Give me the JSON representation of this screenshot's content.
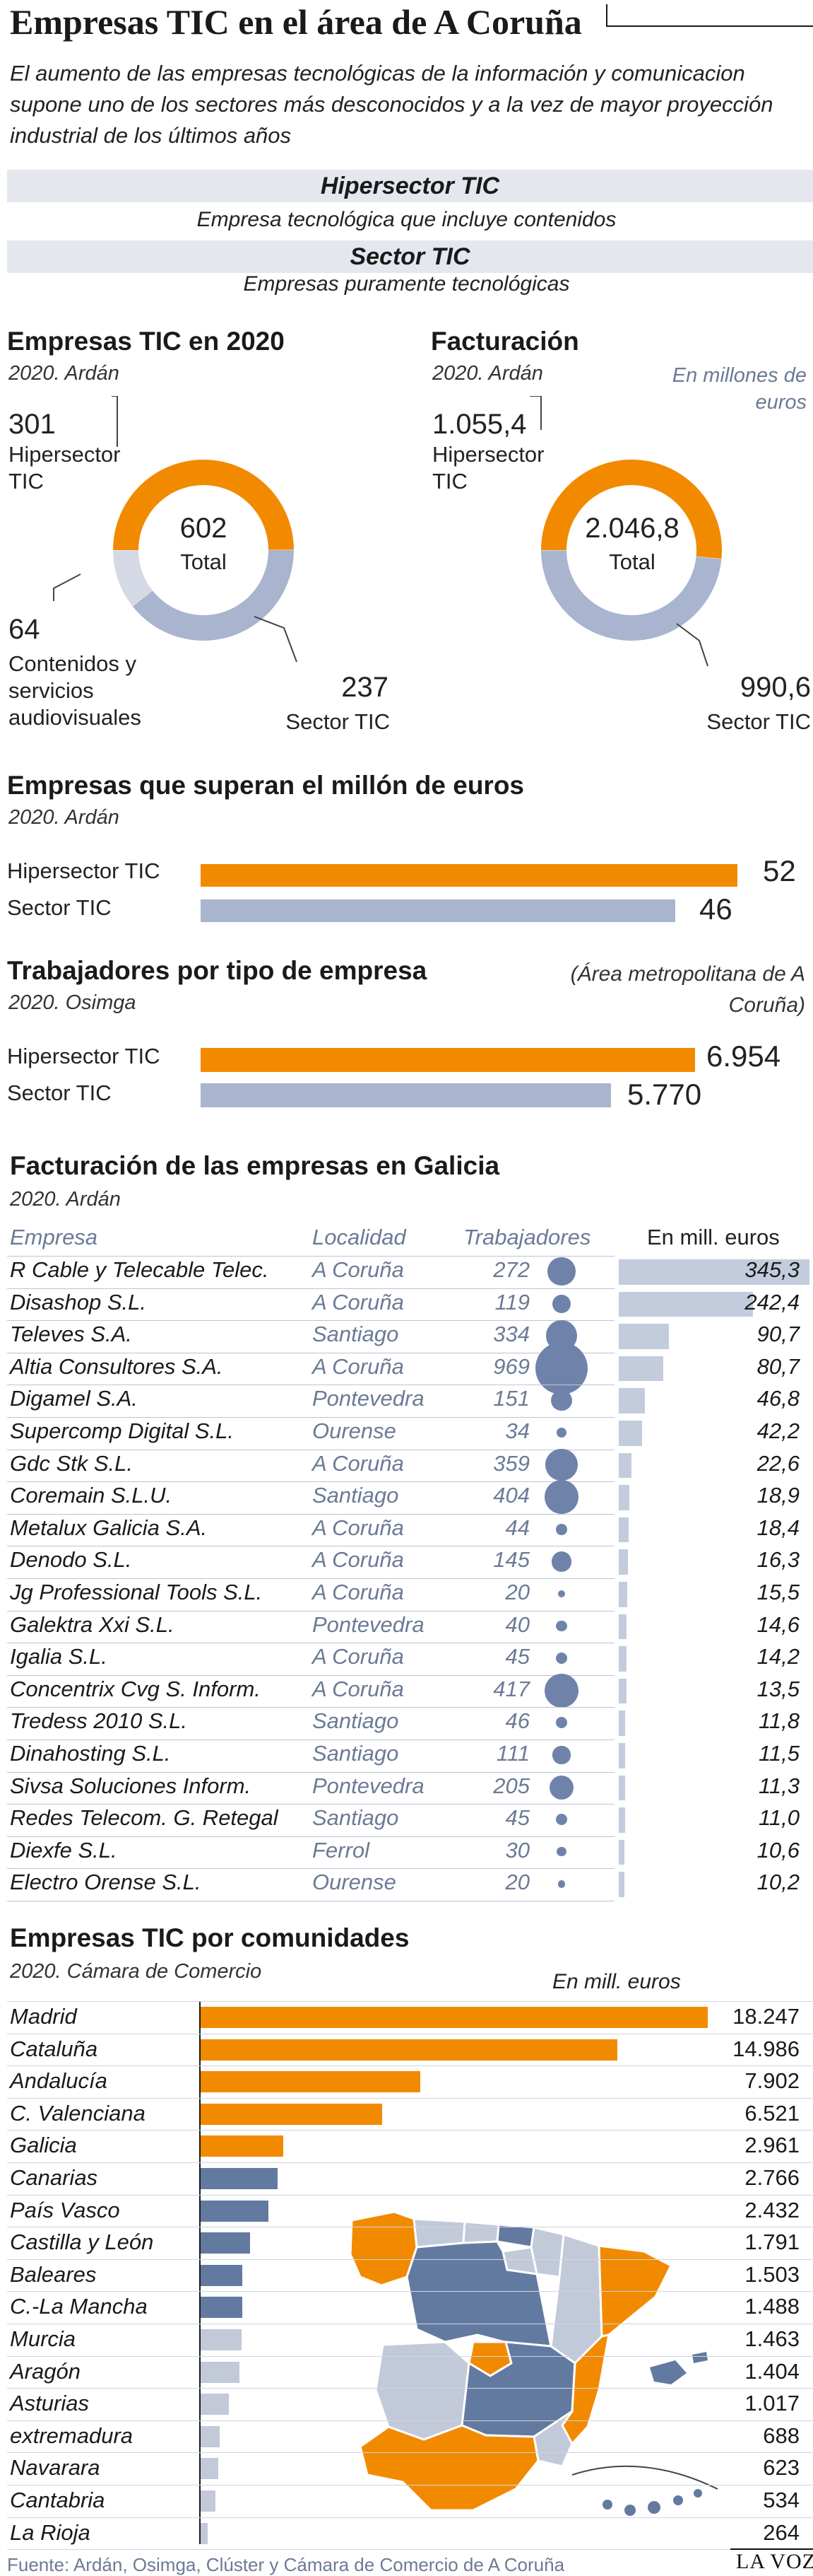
{
  "title": "Empresas TIC en el área de A Coruña",
  "subtitle": "El aumento de las empresas tecnológicas de la información y comunicacion supone uno de los sectores más desconocidos y a la vez de mayor proyección industrial de los últimos años",
  "definitions": [
    {
      "name": "Hipersector TIC",
      "desc": "Empresa tecnológica que incluye contenidos"
    },
    {
      "name": "Sector TIC",
      "desc": "Empresas puramente tecnológicas"
    }
  ],
  "colors": {
    "hipersector": "#f28a00",
    "sector": "#a9b4cf",
    "contenidos": "#d4d9e5",
    "dot": "#6f83aa",
    "map_blue": "#637aa0",
    "map_light": "#c2c9d8"
  },
  "donut_companies": {
    "title": "Empresas TIC en 2020",
    "source": "2020. Ardán",
    "total_value": "602",
    "total_label": "Total",
    "slices": [
      {
        "value": "301",
        "label": "Hipersector TIC"
      },
      {
        "value": "64",
        "label": "Contenidos y servicios audiovisuales"
      },
      {
        "value": "237",
        "label": "Sector TIC"
      }
    ]
  },
  "donut_revenue": {
    "title": "Facturación",
    "source": "2020. Ardán",
    "unit": "En millones de euros",
    "total_value": "2.046,8",
    "total_label": "Total",
    "slices": [
      {
        "value": "1.055,4",
        "label": "Hipersector TIC"
      },
      {
        "value": "990,6",
        "label": "Sector TIC"
      }
    ]
  },
  "million": {
    "title": "Empresas que superan el millón de euros",
    "source": "2020. Ardán",
    "bars": [
      {
        "label": "Hipersector TIC",
        "value": "52"
      },
      {
        "label": "Sector TIC",
        "value": "46"
      }
    ]
  },
  "workers": {
    "title": "Trabajadores por tipo de empresa",
    "source": "2020. Osimga",
    "note": "(Área metropolitana de A Coruña)",
    "bars": [
      {
        "label": "Hipersector TIC",
        "value": "6.954"
      },
      {
        "label": "Sector TIC",
        "value": "5.770"
      }
    ]
  },
  "galicia": {
    "title": "Facturación de las empresas en Galicia",
    "source": "2020. Ardán",
    "headers": {
      "company": "Empresa",
      "locality": "Localidad",
      "workers": "Trabajadores",
      "revenue": "En mill. euros"
    },
    "rows": [
      {
        "company": "R Cable y Telecable Telec.",
        "locality": "A Coruña",
        "workers": "272",
        "revenue": "345,3"
      },
      {
        "company": "Disashop S.L.",
        "locality": "A Coruña",
        "workers": "119",
        "revenue": "242,4"
      },
      {
        "company": "Televes S.A.",
        "locality": "Santiago",
        "workers": "334",
        "revenue": "90,7"
      },
      {
        "company": "Altia Consultores S.A.",
        "locality": "A Coruña",
        "workers": "969",
        "revenue": "80,7"
      },
      {
        "company": "Digamel S.A.",
        "locality": "Pontevedra",
        "workers": "151",
        "revenue": "46,8"
      },
      {
        "company": "Supercomp Digital S.L.",
        "locality": "Ourense",
        "workers": "34",
        "revenue": "42,2"
      },
      {
        "company": "Gdc Stk S.L.",
        "locality": "A Coruña",
        "workers": "359",
        "revenue": "22,6"
      },
      {
        "company": "Coremain S.L.U.",
        "locality": "Santiago",
        "workers": "404",
        "revenue": "18,9"
      },
      {
        "company": "Metalux Galicia S.A.",
        "locality": "A Coruña",
        "workers": "44",
        "revenue": "18,4"
      },
      {
        "company": "Denodo S.L.",
        "locality": "A Coruña",
        "workers": "145",
        "revenue": "16,3"
      },
      {
        "company": "Jg Professional Tools S.L.",
        "locality": "A Coruña",
        "workers": "20",
        "revenue": "15,5"
      },
      {
        "company": "Galektra Xxi S.L.",
        "locality": "Pontevedra",
        "workers": "40",
        "revenue": "14,6"
      },
      {
        "company": "Igalia S.L.",
        "locality": "A Coruña",
        "workers": "45",
        "revenue": "14,2"
      },
      {
        "company": "Concentrix Cvg S. Inform.",
        "locality": "A Coruña",
        "workers": "417",
        "revenue": "13,5"
      },
      {
        "company": "Tredess 2010 S.L.",
        "locality": "Santiago",
        "workers": "46",
        "revenue": "11,8"
      },
      {
        "company": "Dinahosting S.L.",
        "locality": "Santiago",
        "workers": "111",
        "revenue": "11,5"
      },
      {
        "company": "Sivsa Soluciones Inform.",
        "locality": "Pontevedra",
        "workers": "205",
        "revenue": "11,3"
      },
      {
        "company": "Redes Telecom. G. Retegal",
        "locality": "Santiago",
        "workers": "45",
        "revenue": "11,0"
      },
      {
        "company": "Diexfe S.L.",
        "locality": "Ferrol",
        "workers": "30",
        "revenue": "10,6"
      },
      {
        "company": "Electro Orense S.L.",
        "locality": "Ourense",
        "workers": "20",
        "revenue": "10,2"
      }
    ]
  },
  "regions": {
    "title": "Empresas TIC por comunidades",
    "source": "2020. Cámara de Comercio",
    "unit": "En mill. euros",
    "rows": [
      {
        "name": "Madrid",
        "value": "18.247",
        "group": "orange"
      },
      {
        "name": "Cataluña",
        "value": "14.986",
        "group": "orange"
      },
      {
        "name": "Andalucía",
        "value": "7.902",
        "group": "orange"
      },
      {
        "name": "C. Valenciana",
        "value": "6.521",
        "group": "orange"
      },
      {
        "name": "Galicia",
        "value": "2.961",
        "group": "orange"
      },
      {
        "name": "Canarias",
        "value": "2.766",
        "group": "blue"
      },
      {
        "name": "País Vasco",
        "value": "2.432",
        "group": "blue"
      },
      {
        "name": "Castilla y León",
        "value": "1.791",
        "group": "blue"
      },
      {
        "name": "Baleares",
        "value": "1.503",
        "group": "blue"
      },
      {
        "name": "C.-La Mancha",
        "value": "1.488",
        "group": "blue"
      },
      {
        "name": "Murcia",
        "value": "1.463",
        "group": "light"
      },
      {
        "name": "Aragón",
        "value": "1.404",
        "group": "light"
      },
      {
        "name": "Asturias",
        "value": "1.017",
        "group": "light"
      },
      {
        "name": "extremadura",
        "value": "688",
        "group": "light"
      },
      {
        "name": "Navarara",
        "value": "623",
        "group": "light"
      },
      {
        "name": "Cantabria",
        "value": "534",
        "group": "light"
      },
      {
        "name": "La Rioja",
        "value": "264",
        "group": "light"
      }
    ]
  },
  "chart_data": [
    {
      "type": "pie",
      "title": "Empresas TIC en 2020",
      "categories": [
        "Hipersector TIC",
        "Contenidos y servicios audiovisuales",
        "Sector TIC"
      ],
      "values": [
        301,
        64,
        237
      ],
      "total": 602
    },
    {
      "type": "pie",
      "title": "Facturación",
      "categories": [
        "Hipersector TIC",
        "Sector TIC"
      ],
      "values": [
        1055.4,
        990.6
      ],
      "total": 2046.8
    },
    {
      "type": "bar",
      "title": "Empresas que superan el millón de euros",
      "categories": [
        "Hipersector TIC",
        "Sector TIC"
      ],
      "values": [
        52,
        46
      ]
    },
    {
      "type": "bar",
      "title": "Trabajadores por tipo de empresa",
      "categories": [
        "Hipersector TIC",
        "Sector TIC"
      ],
      "values": [
        6954,
        5770
      ]
    },
    {
      "type": "table",
      "title": "Facturación de las empresas en Galicia",
      "columns": [
        "Empresa",
        "Localidad",
        "Trabajadores",
        "En mill. euros"
      ],
      "workers": [
        272,
        119,
        334,
        969,
        151,
        34,
        359,
        404,
        44,
        145,
        20,
        40,
        45,
        417,
        46,
        111,
        205,
        45,
        30,
        20
      ],
      "values": [
        345.3,
        242.4,
        90.7,
        80.7,
        46.8,
        42.2,
        22.6,
        18.9,
        18.4,
        16.3,
        15.5,
        14.6,
        14.2,
        13.5,
        11.8,
        11.5,
        11.3,
        11.0,
        10.6,
        10.2
      ]
    },
    {
      "type": "bar",
      "title": "Empresas TIC por comunidades",
      "ylabel": "En mill. euros",
      "categories": [
        "Madrid",
        "Cataluña",
        "Andalucía",
        "C. Valenciana",
        "Galicia",
        "Canarias",
        "País Vasco",
        "Castilla y León",
        "Baleares",
        "C.-La Mancha",
        "Murcia",
        "Aragón",
        "Asturias",
        "extremadura",
        "Navarara",
        "Cantabria",
        "La Rioja"
      ],
      "values": [
        18247,
        14986,
        7902,
        6521,
        2961,
        2766,
        2432,
        1791,
        1503,
        1488,
        1463,
        1404,
        1017,
        688,
        623,
        534,
        264
      ]
    }
  ],
  "footer": "Fuente: Ardán, Osimga, Clúster y Cámara de Comercio de A Coruña",
  "logo": "LA VOZ"
}
